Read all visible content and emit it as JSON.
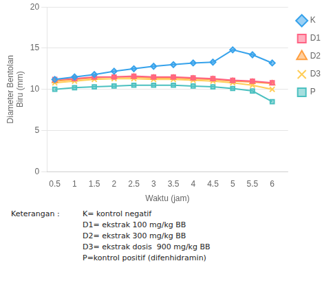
{
  "chart_data": {
    "type": "line",
    "x": [
      0.5,
      1.0,
      1.5,
      2.0,
      2.5,
      3.0,
      3.5,
      4.0,
      4.5,
      5.0,
      5.5,
      6.0
    ],
    "series": [
      {
        "name": "K",
        "marker": "diamond",
        "values": [
          11.2,
          11.5,
          11.8,
          12.2,
          12.5,
          12.8,
          13.0,
          13.2,
          13.3,
          14.8,
          14.2,
          13.2
        ]
      },
      {
        "name": "D1",
        "marker": "square",
        "values": [
          11.2,
          11.3,
          11.5,
          11.5,
          11.6,
          11.5,
          11.5,
          11.4,
          11.3,
          11.1,
          11.0,
          10.8
        ]
      },
      {
        "name": "D2",
        "marker": "triangle",
        "values": [
          11.0,
          11.2,
          11.4,
          11.5,
          11.5,
          11.4,
          11.4,
          11.3,
          11.2,
          11.0,
          10.9,
          10.7
        ]
      },
      {
        "name": "D3",
        "marker": "x",
        "values": [
          10.8,
          11.0,
          11.2,
          11.3,
          11.3,
          11.2,
          11.2,
          11.1,
          11.0,
          10.8,
          10.5,
          10.0
        ]
      },
      {
        "name": "P",
        "marker": "square",
        "values": [
          10.0,
          10.2,
          10.3,
          10.4,
          10.5,
          10.5,
          10.5,
          10.4,
          10.3,
          10.1,
          9.8,
          8.5
        ]
      }
    ],
    "xlabel": "Waktu (jam)",
    "ylabel": "Diameter Bentolan\nBiru (mm)",
    "xlim": [
      0.3,
      6.4
    ],
    "xticks": [
      0.5,
      1,
      1.5,
      2,
      2.5,
      3,
      3.5,
      4,
      4.5,
      5,
      5.5,
      6
    ],
    "ylim": [
      0,
      20
    ],
    "yticks": [
      0,
      5,
      10,
      15,
      20
    ],
    "grid": "y",
    "legend": "right",
    "annotations": [
      "Keterangan : ",
      "K= kontrol negatif",
      "D1= ekstrak 100 mg/kg BB",
      "D2= ekstrak 300 mg/kg BB",
      "D3= ekstrak dosis  900 mg/kg BB",
      "P=kontrol positif (difenhidramin)"
    ]
  }
}
